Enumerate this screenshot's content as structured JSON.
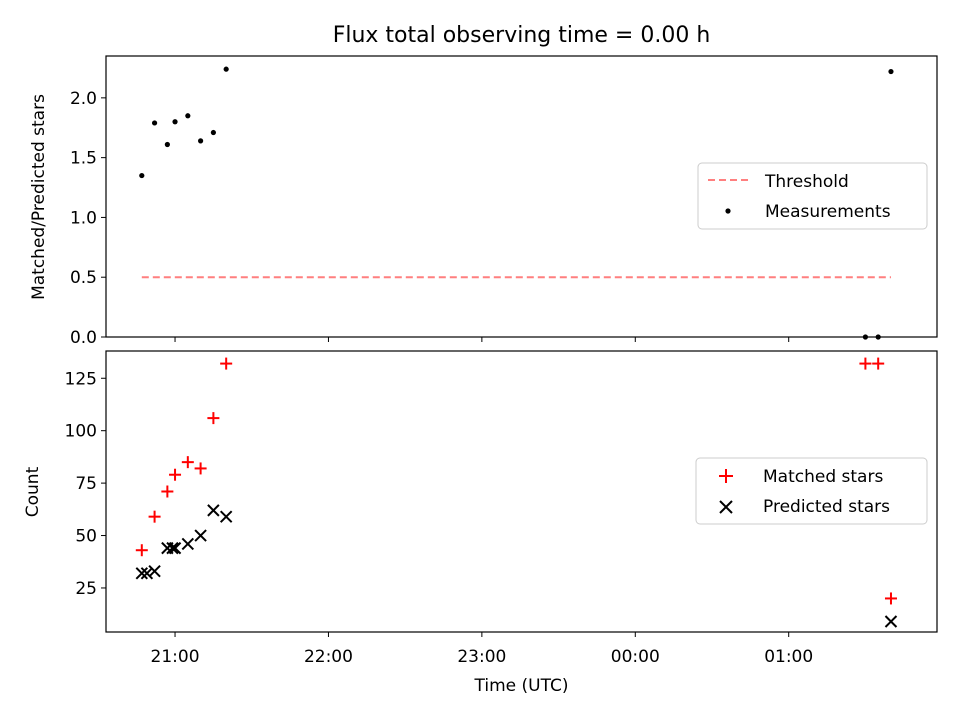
{
  "title": "Flux total observing time = 0.00 h",
  "xlabel": "Time (UTC)",
  "x_ticks": [
    "21:00",
    "22:00",
    "23:00",
    "00:00",
    "01:00"
  ],
  "chart_data": [
    {
      "type": "scatter",
      "title": "Flux total observing time = 0.00 h",
      "xlabel": "",
      "ylabel": "Matched/Predicted stars",
      "xlim": [
        "20:33",
        "01:58"
      ],
      "ylim": [
        0,
        2.35
      ],
      "yticks": [
        "0.0",
        "0.5",
        "1.0",
        "1.5",
        "2.0"
      ],
      "grid": false,
      "legend": "center-right",
      "series": [
        {
          "name": "Threshold",
          "style": "dashed-line",
          "color": "#ff7f7f",
          "x": [
            "20:47",
            "01:40"
          ],
          "y": [
            0.5,
            0.5
          ]
        },
        {
          "name": "Measurements",
          "style": "dot",
          "color": "#000000",
          "x": [
            "20:47",
            "20:52",
            "20:57",
            "21:00",
            "21:05",
            "21:10",
            "21:15",
            "21:20",
            "01:30",
            "01:35",
            "01:40"
          ],
          "y": [
            1.35,
            1.79,
            1.61,
            1.8,
            1.85,
            1.64,
            1.71,
            2.24,
            0.0,
            0.0,
            2.22
          ]
        }
      ]
    },
    {
      "type": "scatter",
      "xlabel": "Time (UTC)",
      "ylabel": "Count",
      "xlim": [
        "20:33",
        "01:58"
      ],
      "ylim": [
        4,
        138
      ],
      "yticks": [
        "25",
        "50",
        "75",
        "100",
        "125"
      ],
      "grid": false,
      "legend": "center-right",
      "series": [
        {
          "name": "Matched stars",
          "marker": "+",
          "color": "#ff0000",
          "x": [
            "20:47",
            "20:52",
            "20:57",
            "21:00",
            "21:05",
            "21:10",
            "21:15",
            "21:20",
            "01:30",
            "01:35",
            "01:40"
          ],
          "y": [
            43,
            59,
            71,
            79,
            85,
            82,
            106,
            132,
            132,
            132,
            20
          ]
        },
        {
          "name": "Predicted stars",
          "marker": "x",
          "color": "#000000",
          "x": [
            "20:47",
            "20:49",
            "20:52",
            "20:57",
            "20:59",
            "21:00",
            "21:05",
            "21:10",
            "21:15",
            "21:20",
            "01:40"
          ],
          "y": [
            32,
            32,
            33,
            44,
            44,
            44,
            46,
            50,
            62,
            59,
            9
          ]
        }
      ]
    }
  ]
}
